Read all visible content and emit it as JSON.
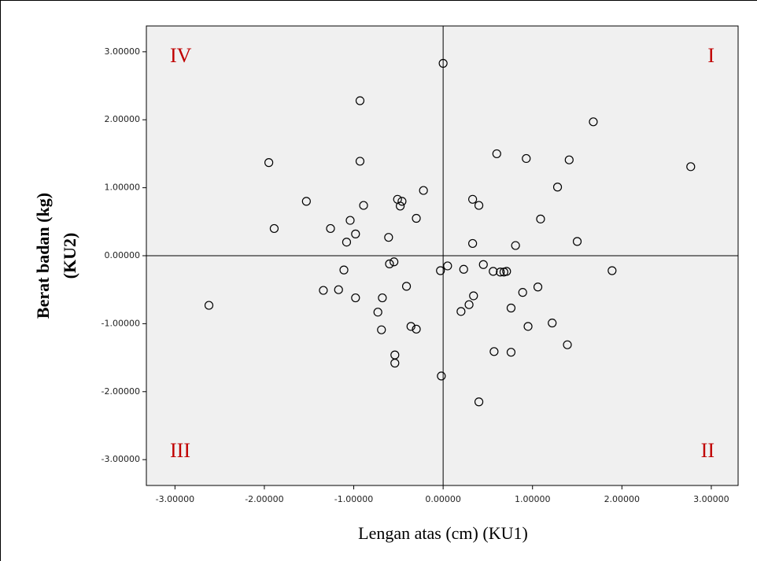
{
  "chart_data": {
    "type": "scatter",
    "x_label": "Lengan atas (cm) (KU1)",
    "y_label": [
      "Berat badan (kg)",
      "(KU2)"
    ],
    "quadrant_labels": [
      "I",
      "II",
      "III",
      "IV"
    ],
    "marker_color": "#000000",
    "plot_background": "#f0f0f0",
    "quadrant_label_color": "#c00000",
    "xlim": [
      -3.32,
      3.3
    ],
    "ylim": [
      -3.38,
      3.38
    ],
    "xticks": [
      {
        "value": -3,
        "label": "-3.00000"
      },
      {
        "value": -2,
        "label": "-2.00000"
      },
      {
        "value": -1,
        "label": "-1.00000"
      },
      {
        "value": 0,
        "label": "0.00000"
      },
      {
        "value": 1,
        "label": "1.00000"
      },
      {
        "value": 2,
        "label": "2.00000"
      },
      {
        "value": 3,
        "label": "3.00000"
      }
    ],
    "yticks": [
      {
        "value": -3,
        "label": "-3.00000"
      },
      {
        "value": -2,
        "label": "-2.00000"
      },
      {
        "value": -1,
        "label": "-1.00000"
      },
      {
        "value": 0,
        "label": "0.00000"
      },
      {
        "value": 1,
        "label": "1.00000"
      },
      {
        "value": 2,
        "label": "2.00000"
      },
      {
        "value": 3,
        "label": "3.00000"
      }
    ],
    "x": [
      0,
      -0.93,
      1.68,
      -1.95,
      0.6,
      0.93,
      1.41,
      -0.93,
      2.77,
      1.28,
      -0.22,
      -1.53,
      -0.51,
      -0.46,
      0.33,
      0.4,
      -0.89,
      -0.48,
      1.09,
      -1.04,
      -0.3,
      -1.89,
      -1.26,
      -0.98,
      -0.61,
      -1.08,
      1.5,
      0.33,
      0.81,
      -0.55,
      -0.6,
      0.45,
      0.05,
      -0.03,
      0.23,
      0.56,
      0.64,
      0.68,
      0.71,
      1.89,
      -1.11,
      -1.34,
      -1.17,
      -0.41,
      1.06,
      -2.62,
      -0.98,
      -0.68,
      0.34,
      0.89,
      0.29,
      0.2,
      0.76,
      -0.73,
      -0.36,
      -0.3,
      -0.69,
      0.95,
      1.22,
      1.39,
      0.57,
      0.76,
      -0.54,
      -0.54,
      -0.02,
      0.4
    ],
    "values": [
      2.83,
      2.28,
      1.97,
      1.37,
      1.5,
      1.43,
      1.41,
      1.39,
      1.31,
      1.01,
      0.96,
      0.8,
      0.83,
      0.8,
      0.83,
      0.74,
      0.74,
      0.73,
      0.54,
      0.52,
      0.55,
      0.4,
      0.4,
      0.32,
      0.27,
      0.2,
      0.21,
      0.18,
      0.15,
      -0.09,
      -0.12,
      -0.13,
      -0.15,
      -0.22,
      -0.2,
      -0.23,
      -0.24,
      -0.24,
      -0.23,
      -0.22,
      -0.21,
      -0.51,
      -0.5,
      -0.45,
      -0.46,
      -0.73,
      -0.62,
      -0.62,
      -0.59,
      -0.54,
      -0.72,
      -0.82,
      -0.77,
      -0.83,
      -1.04,
      -1.08,
      -1.09,
      -1.04,
      -0.99,
      -1.31,
      -1.41,
      -1.42,
      -1.46,
      -1.58,
      -1.77,
      -2.15
    ]
  }
}
